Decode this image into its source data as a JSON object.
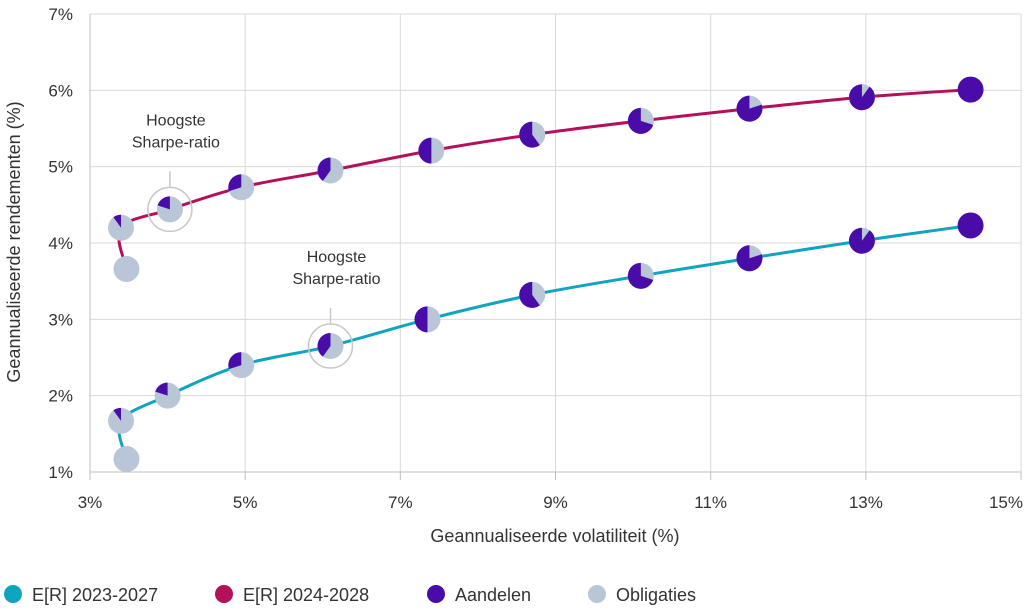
{
  "colors": {
    "series_2023": "#0fa4bf",
    "series_2024": "#b5105a",
    "equities": "#4a0ca8",
    "bonds": "#b8c6d8",
    "grid": "#d9d9d9",
    "axis": "#bfbfbf",
    "text": "#333333"
  },
  "chart_data": {
    "type": "line",
    "xlabel": "Geannualiseerde volatiliteit (%)",
    "ylabel": "Geannualiseerde rendementen (%)",
    "xlim": [
      3,
      15
    ],
    "ylim": [
      1,
      7
    ],
    "x_ticks": [
      3,
      5,
      7,
      9,
      11,
      13,
      15
    ],
    "x_tick_labels": [
      "3%",
      "5%",
      "7%",
      "9%",
      "11%",
      "13%",
      "15%"
    ],
    "y_ticks": [
      1,
      2,
      3,
      4,
      5,
      6,
      7
    ],
    "y_tick_labels": [
      "1%",
      "2%",
      "3%",
      "4%",
      "5%",
      "6%",
      "7%"
    ],
    "grid": true,
    "legend_position": "bottom",
    "marker_legend": [
      {
        "name": "Aandelen",
        "color_key": "equities"
      },
      {
        "name": "Obligaties",
        "color_key": "bonds"
      }
    ],
    "series": [
      {
        "name": "E[R] 2023-2027",
        "color_key": "series_2023",
        "points": [
          {
            "x": 3.47,
            "y": 1.17,
            "equity_share": 0.0
          },
          {
            "x": 3.4,
            "y": 1.67,
            "equity_share": 0.1
          },
          {
            "x": 4.0,
            "y": 2.0,
            "equity_share": 0.2
          },
          {
            "x": 4.95,
            "y": 2.4,
            "equity_share": 0.3
          },
          {
            "x": 6.1,
            "y": 2.65,
            "equity_share": 0.4
          },
          {
            "x": 7.35,
            "y": 3.0,
            "equity_share": 0.5
          },
          {
            "x": 8.7,
            "y": 3.32,
            "equity_share": 0.6
          },
          {
            "x": 10.1,
            "y": 3.57,
            "equity_share": 0.7
          },
          {
            "x": 11.5,
            "y": 3.8,
            "equity_share": 0.8
          },
          {
            "x": 12.95,
            "y": 4.03,
            "equity_share": 0.9
          },
          {
            "x": 14.35,
            "y": 4.23,
            "equity_share": 1.0
          }
        ]
      },
      {
        "name": "E[R] 2024-2028",
        "color_key": "series_2024",
        "points": [
          {
            "x": 3.47,
            "y": 3.66,
            "equity_share": 0.0
          },
          {
            "x": 3.4,
            "y": 4.2,
            "equity_share": 0.1
          },
          {
            "x": 4.03,
            "y": 4.44,
            "equity_share": 0.2
          },
          {
            "x": 4.95,
            "y": 4.73,
            "equity_share": 0.3
          },
          {
            "x": 6.1,
            "y": 4.95,
            "equity_share": 0.4
          },
          {
            "x": 7.4,
            "y": 5.21,
            "equity_share": 0.5
          },
          {
            "x": 8.7,
            "y": 5.42,
            "equity_share": 0.6
          },
          {
            "x": 10.1,
            "y": 5.6,
            "equity_share": 0.7
          },
          {
            "x": 11.5,
            "y": 5.76,
            "equity_share": 0.8
          },
          {
            "x": 12.95,
            "y": 5.91,
            "equity_share": 0.9
          },
          {
            "x": 14.35,
            "y": 6.01,
            "equity_share": 1.0
          }
        ]
      }
    ],
    "annotations": [
      {
        "text_lines": [
          "Hoogste",
          "Sharpe-ratio"
        ],
        "x": 4.03,
        "y": 4.44
      },
      {
        "text_lines": [
          "Hoogste",
          "Sharpe-ratio"
        ],
        "x": 6.1,
        "y": 2.65
      }
    ]
  }
}
